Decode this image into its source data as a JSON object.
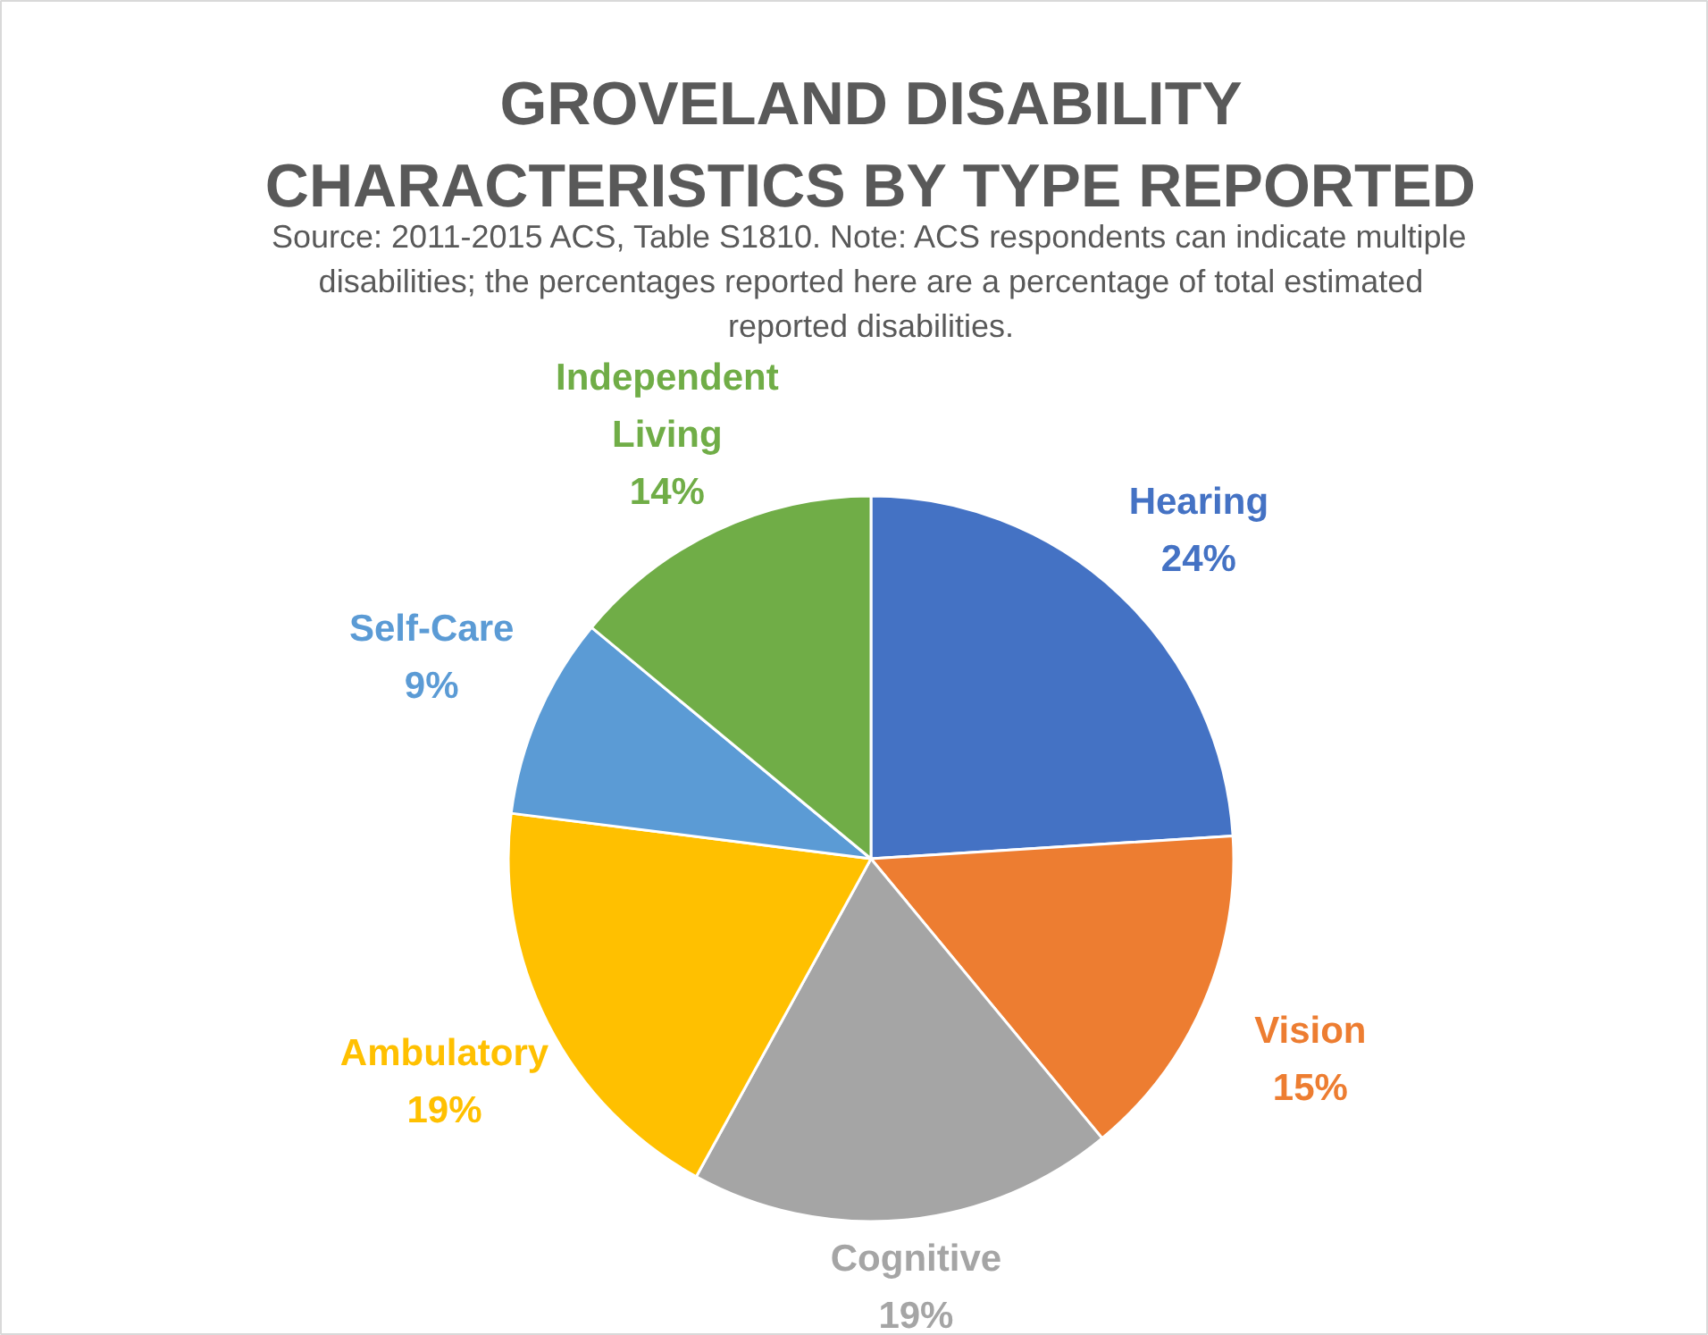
{
  "chart_data": {
    "type": "pie",
    "title": "GROVELAND DISABILITY CHARACTERISTICS BY TYPE REPORTED",
    "annotations": [
      "Source: 2011-2015 ACS, Table S1810. Note: ACS respondents can indicate multiple disabilities; the percentages reported here are a percentage of total estimated reported disabilities."
    ],
    "categories": [
      "Hearing",
      "Vision",
      "Cognitive",
      "Ambulatory",
      "Self-Care",
      "Independent Living"
    ],
    "values": [
      24,
      15,
      19,
      19,
      9,
      14
    ],
    "value_labels": [
      "24%",
      "15%",
      "19%",
      "19%",
      "9%",
      "14%"
    ],
    "colors": [
      "#4472c4",
      "#ed7d31",
      "#a5a5a5",
      "#ffc000",
      "#5b9bd5",
      "#70ad47"
    ]
  }
}
